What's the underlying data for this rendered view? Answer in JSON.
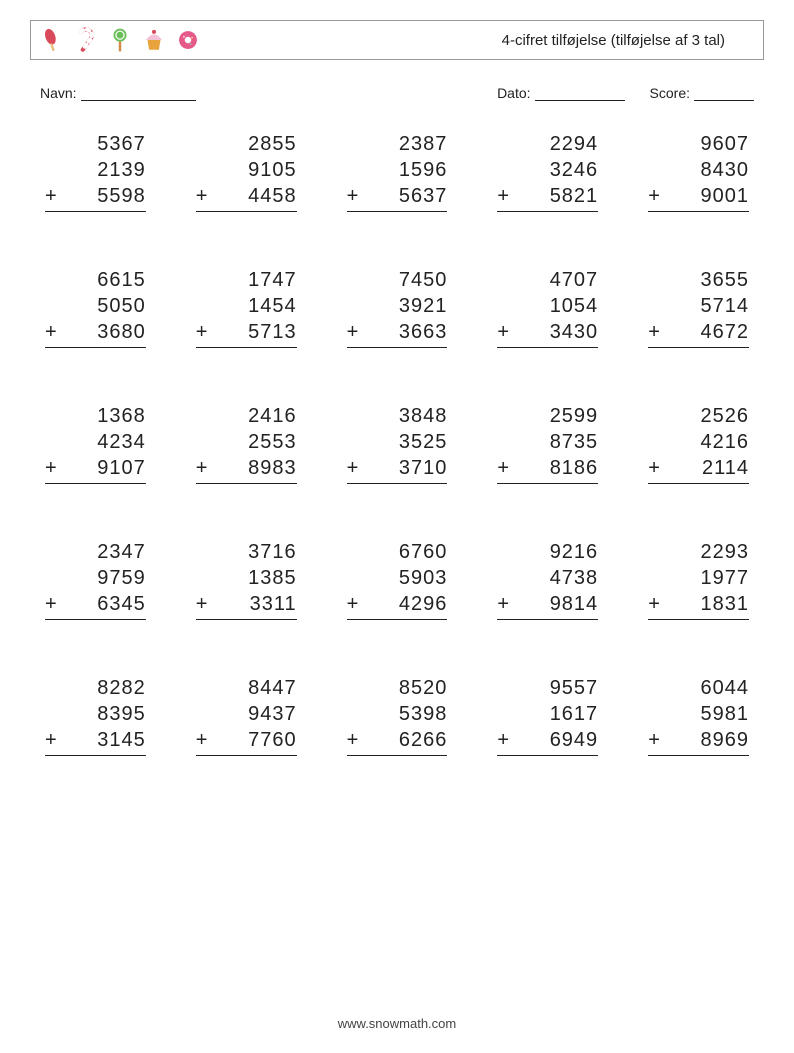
{
  "header": {
    "title": "4-cifret tilføjelse (tilføjelse af 3 tal)",
    "icons": [
      "popsicle",
      "candy-cane",
      "lollipop",
      "cupcake",
      "donut"
    ]
  },
  "fields": {
    "name_label": "Navn:",
    "date_label": "Dato:",
    "score_label": "Score:"
  },
  "operator": "+",
  "problems": [
    {
      "a": "5367",
      "b": "2139",
      "c": "5598"
    },
    {
      "a": "2855",
      "b": "9105",
      "c": "4458"
    },
    {
      "a": "2387",
      "b": "1596",
      "c": "5637"
    },
    {
      "a": "2294",
      "b": "3246",
      "c": "5821"
    },
    {
      "a": "9607",
      "b": "8430",
      "c": "9001"
    },
    {
      "a": "6615",
      "b": "5050",
      "c": "3680"
    },
    {
      "a": "1747",
      "b": "1454",
      "c": "5713"
    },
    {
      "a": "7450",
      "b": "3921",
      "c": "3663"
    },
    {
      "a": "4707",
      "b": "1054",
      "c": "3430"
    },
    {
      "a": "3655",
      "b": "5714",
      "c": "4672"
    },
    {
      "a": "1368",
      "b": "4234",
      "c": "9107"
    },
    {
      "a": "2416",
      "b": "2553",
      "c": "8983"
    },
    {
      "a": "3848",
      "b": "3525",
      "c": "3710"
    },
    {
      "a": "2599",
      "b": "8735",
      "c": "8186"
    },
    {
      "a": "2526",
      "b": "4216",
      "c": "2114"
    },
    {
      "a": "2347",
      "b": "9759",
      "c": "6345"
    },
    {
      "a": "3716",
      "b": "1385",
      "c": "3311"
    },
    {
      "a": "6760",
      "b": "5903",
      "c": "4296"
    },
    {
      "a": "9216",
      "b": "4738",
      "c": "9814"
    },
    {
      "a": "2293",
      "b": "1977",
      "c": "1831"
    },
    {
      "a": "8282",
      "b": "8395",
      "c": "3145"
    },
    {
      "a": "8447",
      "b": "9437",
      "c": "7760"
    },
    {
      "a": "8520",
      "b": "5398",
      "c": "6266"
    },
    {
      "a": "9557",
      "b": "1617",
      "c": "6949"
    },
    {
      "a": "6044",
      "b": "5981",
      "c": "8969"
    }
  ],
  "footer": "www.snowmath.com",
  "style": {
    "page_bg": "#ffffff",
    "text_color": "#222222",
    "border_color": "#999999",
    "underline_color": "#222222",
    "font_size_title": 15,
    "font_size_fields": 14,
    "font_size_problems": 20,
    "font_size_footer": 13,
    "grid_cols": 5,
    "grid_rows": 5,
    "icon_colors": {
      "popsicle": "#d94a5a",
      "candy_cane": "#d94a5a",
      "lollipop": "#6bbf59",
      "cupcake": "#e8a33d",
      "donut": "#e55a8a"
    }
  }
}
